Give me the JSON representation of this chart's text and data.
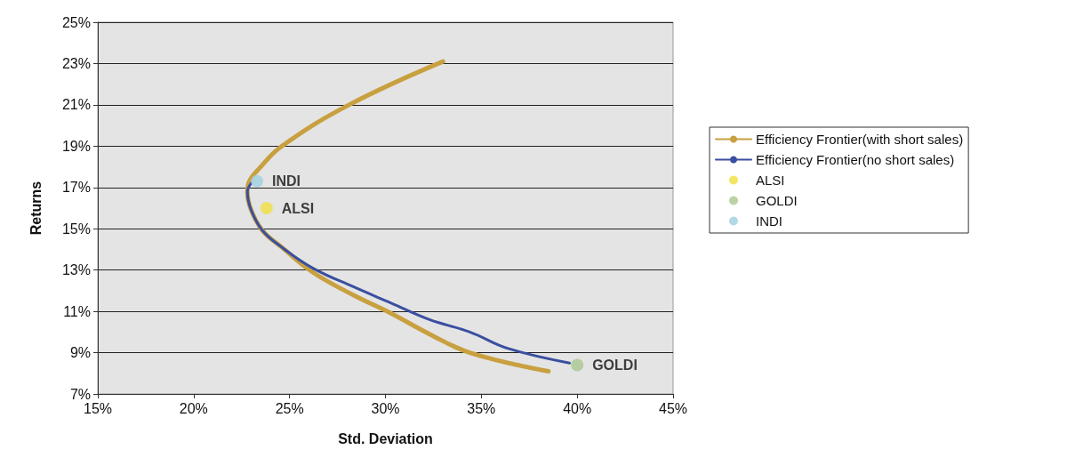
{
  "chart_data": {
    "type": "line",
    "xlabel": "Std. Deviation",
    "ylabel": "Returns",
    "xlim": [
      15,
      45
    ],
    "xticks": [
      {
        "value": 15,
        "label": "15%"
      },
      {
        "value": 20,
        "label": "20%"
      },
      {
        "value": 25,
        "label": "25%"
      },
      {
        "value": 30,
        "label": "30%"
      },
      {
        "value": 35,
        "label": "35%"
      },
      {
        "value": 40,
        "label": "40%"
      },
      {
        "value": 45,
        "label": "45%"
      }
    ],
    "ylim": [
      7,
      25
    ],
    "yticks": [
      {
        "value": 7,
        "label": "7%"
      },
      {
        "value": 9,
        "label": "9%"
      },
      {
        "value": 11,
        "label": "11%"
      },
      {
        "value": 13,
        "label": "13%"
      },
      {
        "value": 15,
        "label": "15%"
      },
      {
        "value": 17,
        "label": "17%"
      },
      {
        "value": 19,
        "label": "19%"
      },
      {
        "value": 21,
        "label": "21%"
      },
      {
        "value": 23,
        "label": "23%"
      },
      {
        "value": 25,
        "label": "25%"
      }
    ],
    "grid": "y",
    "legend": "right",
    "series": [
      {
        "name": "Efficiency Frontier(with short sales)",
        "color": "#c8a040",
        "marker": "none",
        "x": [
          33.0,
          28.1,
          24.6,
          23.4,
          22.9,
          22.8,
          23.0,
          23.6,
          24.6,
          26.2,
          28.3,
          30.3,
          32.3,
          34.4,
          38.5
        ],
        "values": [
          23.1,
          21.0,
          19.0,
          17.9,
          17.3,
          16.8,
          15.9,
          14.9,
          14.1,
          12.9,
          11.8,
          10.9,
          9.9,
          9.0,
          8.1
        ]
      },
      {
        "name": "Efficiency Frontier(no short sales)",
        "color": "#3a4fa0",
        "marker": "none",
        "x": [
          23.0,
          22.8,
          23.0,
          23.6,
          24.6,
          26.2,
          28.3,
          30.3,
          32.3,
          34.4,
          36.4,
          39.6
        ],
        "values": [
          17.2,
          16.8,
          15.9,
          14.9,
          14.1,
          13.1,
          12.2,
          11.4,
          10.6,
          10.0,
          9.2,
          8.5
        ]
      },
      {
        "name": "ALSI",
        "type": "scatter",
        "color": "#f0e040",
        "marker": "circle",
        "x": [
          23.8
        ],
        "values": [
          16.0
        ]
      },
      {
        "name": "GOLDI",
        "type": "scatter",
        "color": "#a8c890",
        "marker": "circle",
        "x": [
          40.0
        ],
        "values": [
          8.4
        ]
      },
      {
        "name": "INDI",
        "type": "scatter",
        "color": "#a0d0e0",
        "marker": "circle",
        "x": [
          23.3
        ],
        "values": [
          17.3
        ]
      }
    ]
  }
}
